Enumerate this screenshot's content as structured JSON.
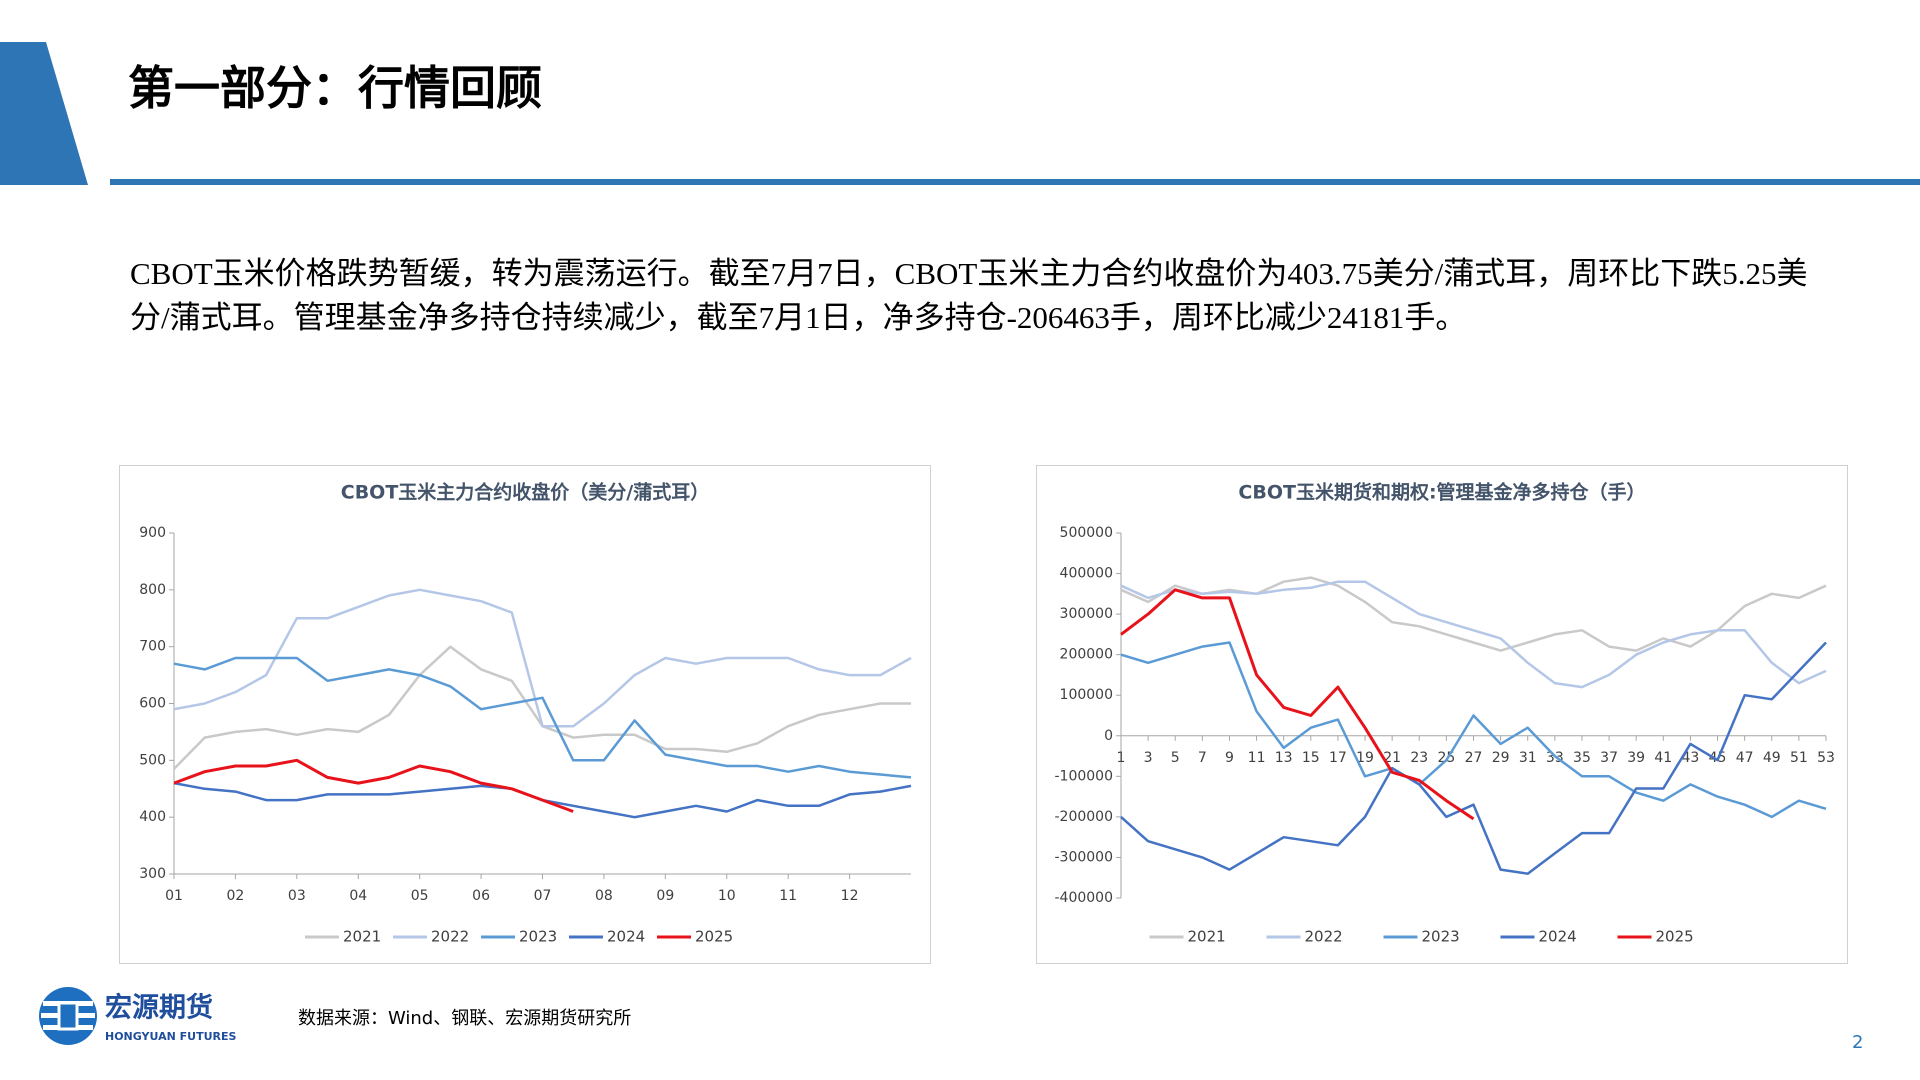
{
  "header": {
    "title": "第一部分：行情回顾"
  },
  "body": {
    "text": "CBOT玉米价格跌势暂缓，转为震荡运行。截至7月7日，CBOT玉米主力合约收盘价为403.75美分/蒲式耳，周环比下跌5.25美分/蒲式耳。管理基金净多持仓持续减少，截至7月1日，净多持仓-206463手，周环比减少24181手。"
  },
  "chart_data": [
    {
      "type": "line",
      "title": "CBOT玉米主力合约收盘价（美分/蒲式耳）",
      "x": [
        1,
        1.5,
        2,
        2.5,
        3,
        3.5,
        4,
        4.5,
        5,
        5.5,
        6,
        6.5,
        7,
        7.5,
        8,
        8.5,
        9,
        9.5,
        10,
        10.5,
        11,
        11.5,
        12,
        12.5,
        13
      ],
      "xlim": [
        1,
        13
      ],
      "xticks": [
        {
          "value": 1,
          "label": "01"
        },
        {
          "value": 2,
          "label": "02"
        },
        {
          "value": 3,
          "label": "03"
        },
        {
          "value": 4,
          "label": "04"
        },
        {
          "value": 5,
          "label": "05"
        },
        {
          "value": 6,
          "label": "06"
        },
        {
          "value": 7,
          "label": "07"
        },
        {
          "value": 8,
          "label": "08"
        },
        {
          "value": 9,
          "label": "09"
        },
        {
          "value": 10,
          "label": "10"
        },
        {
          "value": 11,
          "label": "11"
        },
        {
          "value": 12,
          "label": "12"
        }
      ],
      "ylim": [
        300,
        900
      ],
      "yticks": [
        300,
        400,
        500,
        600,
        700,
        800,
        900
      ],
      "grid": false,
      "series": [
        {
          "name": "2021",
          "color": "#c9c9c9",
          "values": [
            485,
            540,
            550,
            555,
            545,
            555,
            550,
            580,
            650,
            700,
            660,
            640,
            560,
            540,
            545,
            545,
            520,
            520,
            515,
            530,
            560,
            580,
            590,
            600,
            600
          ]
        },
        {
          "name": "2022",
          "color": "#b4c7e7",
          "values": [
            590,
            600,
            620,
            650,
            750,
            750,
            770,
            790,
            800,
            790,
            780,
            760,
            560,
            560,
            600,
            650,
            680,
            670,
            680,
            680,
            680,
            660,
            650,
            650,
            680
          ]
        },
        {
          "name": "2023",
          "color": "#5b9bd5",
          "values": [
            670,
            660,
            680,
            680,
            680,
            640,
            650,
            660,
            650,
            630,
            590,
            600,
            610,
            500,
            500,
            570,
            510,
            500,
            490,
            490,
            480,
            490,
            480,
            475,
            470
          ]
        },
        {
          "name": "2024",
          "color": "#4472c4",
          "values": [
            460,
            450,
            445,
            430,
            430,
            440,
            440,
            440,
            445,
            450,
            455,
            450,
            430,
            420,
            410,
            400,
            410,
            420,
            410,
            430,
            420,
            420,
            440,
            445,
            455
          ]
        },
        {
          "name": "2025",
          "color": "#e8121a",
          "values": [
            460,
            480,
            490,
            490,
            500,
            470,
            460,
            470,
            490,
            480,
            460,
            450,
            430,
            410,
            null,
            null,
            null,
            null,
            null,
            null,
            null,
            null,
            null,
            null,
            null
          ]
        }
      ]
    },
    {
      "type": "line",
      "title": "CBOT玉米期货和期权:管理基金净多持仓（手）",
      "x": [
        1,
        3,
        5,
        7,
        9,
        11,
        13,
        15,
        17,
        19,
        21,
        23,
        25,
        27,
        29,
        31,
        33,
        35,
        37,
        39,
        41,
        43,
        45,
        47,
        49,
        51,
        53
      ],
      "xlim": [
        1,
        53
      ],
      "xticks": [
        1,
        3,
        5,
        7,
        9,
        11,
        13,
        15,
        17,
        19,
        21,
        23,
        25,
        27,
        29,
        31,
        33,
        35,
        37,
        39,
        41,
        43,
        45,
        47,
        49,
        51,
        53
      ],
      "ylim": [
        -400000,
        500000
      ],
      "yticks": [
        -400000,
        -300000,
        -200000,
        -100000,
        0,
        100000,
        200000,
        300000,
        400000,
        500000
      ],
      "grid": false,
      "series": [
        {
          "name": "2021",
          "color": "#c9c9c9",
          "values": [
            360000,
            330000,
            370000,
            350000,
            360000,
            350000,
            380000,
            390000,
            370000,
            330000,
            280000,
            270000,
            250000,
            230000,
            210000,
            230000,
            250000,
            260000,
            220000,
            210000,
            240000,
            220000,
            260000,
            320000,
            350000,
            340000,
            370000
          ]
        },
        {
          "name": "2022",
          "color": "#b4c7e7",
          "values": [
            370000,
            340000,
            360000,
            350000,
            355000,
            350000,
            360000,
            365000,
            380000,
            380000,
            340000,
            300000,
            280000,
            260000,
            240000,
            180000,
            130000,
            120000,
            150000,
            200000,
            230000,
            250000,
            260000,
            260000,
            180000,
            130000,
            160000
          ]
        },
        {
          "name": "2023",
          "color": "#5b9bd5",
          "values": [
            200000,
            180000,
            200000,
            220000,
            230000,
            60000,
            -30000,
            20000,
            40000,
            -100000,
            -80000,
            -120000,
            -60000,
            50000,
            -20000,
            20000,
            -50000,
            -100000,
            -100000,
            -140000,
            -160000,
            -120000,
            -150000,
            -170000,
            -200000,
            -160000,
            -180000
          ]
        },
        {
          "name": "2024",
          "color": "#4472c4",
          "values": [
            -200000,
            -260000,
            -280000,
            -300000,
            -330000,
            -290000,
            -250000,
            -260000,
            -270000,
            -200000,
            -80000,
            -120000,
            -200000,
            -170000,
            -330000,
            -340000,
            -290000,
            -240000,
            -240000,
            -130000,
            -130000,
            -20000,
            -60000,
            100000,
            90000,
            160000,
            230000
          ]
        },
        {
          "name": "2025",
          "color": "#e8121a",
          "values": [
            250000,
            300000,
            360000,
            340000,
            340000,
            150000,
            70000,
            50000,
            120000,
            20000,
            -90000,
            -110000,
            -160000,
            -205000,
            null,
            null,
            null,
            null,
            null,
            null,
            null,
            null,
            null,
            null,
            null,
            null,
            null
          ]
        }
      ]
    }
  ],
  "footer": {
    "source": "数据来源：Wind、钢联、宏源期货研究所",
    "logo_name": "宏源期货",
    "logo_subtitle": "HONGYUAN FUTURES",
    "page_number": "2"
  }
}
